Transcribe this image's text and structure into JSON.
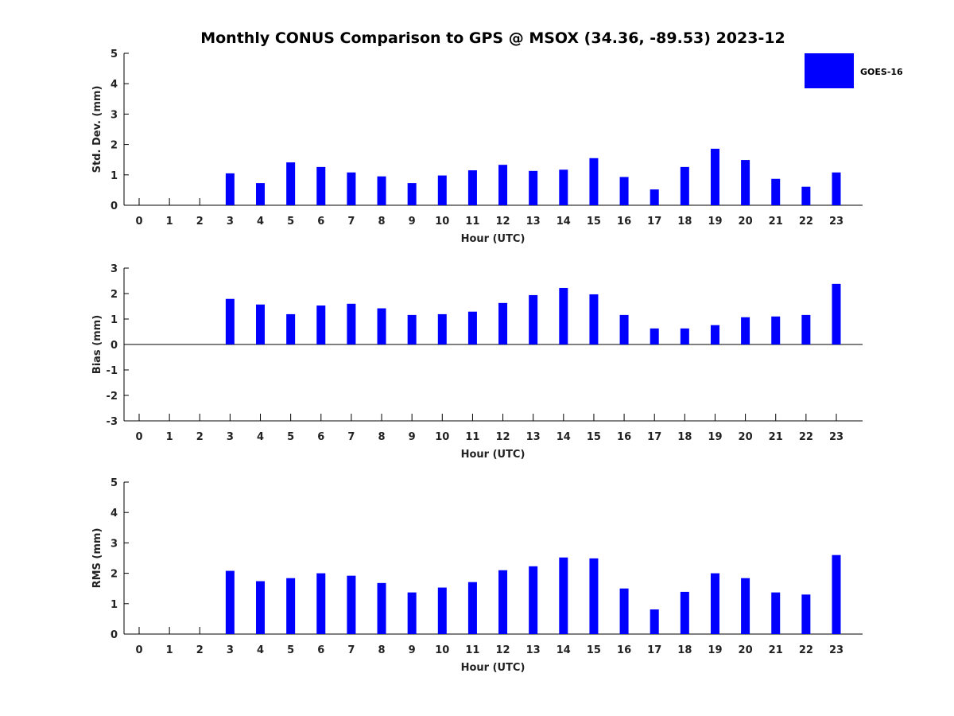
{
  "title": "Monthly CONUS Comparison to GPS @ MSOX (34.36, -89.53) 2023-12",
  "legend": {
    "label": "GOES-16",
    "color": "#0000ff"
  },
  "chart_data": [
    {
      "type": "bar",
      "xlabel": "Hour (UTC)",
      "ylabel": "Std. Dev. (mm)",
      "categories": [
        "0",
        "1",
        "2",
        "3",
        "4",
        "5",
        "6",
        "7",
        "8",
        "9",
        "10",
        "11",
        "12",
        "13",
        "14",
        "15",
        "16",
        "17",
        "18",
        "19",
        "20",
        "21",
        "22",
        "23"
      ],
      "series": [
        {
          "name": "GOES-16",
          "values": [
            null,
            null,
            null,
            1.05,
            0.73,
            1.41,
            1.26,
            1.08,
            0.95,
            0.73,
            0.98,
            1.15,
            1.33,
            1.13,
            1.17,
            1.55,
            0.93,
            0.52,
            1.26,
            1.86,
            1.49,
            0.87,
            0.61,
            1.08
          ]
        }
      ],
      "ylim": [
        0,
        5
      ],
      "yticks": [
        0,
        1,
        2,
        3,
        4,
        5
      ],
      "legend_position": "top-right",
      "grid": false
    },
    {
      "type": "bar",
      "xlabel": "Hour (UTC)",
      "ylabel": "Bias (mm)",
      "categories": [
        "0",
        "1",
        "2",
        "3",
        "4",
        "5",
        "6",
        "7",
        "8",
        "9",
        "10",
        "11",
        "12",
        "13",
        "14",
        "15",
        "16",
        "17",
        "18",
        "19",
        "20",
        "21",
        "22",
        "23"
      ],
      "series": [
        {
          "name": "GOES-16",
          "values": [
            null,
            null,
            null,
            1.79,
            1.57,
            1.19,
            1.53,
            1.6,
            1.42,
            1.16,
            1.19,
            1.29,
            1.63,
            1.94,
            2.22,
            1.97,
            1.16,
            0.63,
            0.63,
            0.76,
            1.07,
            1.1,
            1.16,
            2.38
          ]
        }
      ],
      "ylim": [
        -3,
        3
      ],
      "yticks": [
        -3,
        -2,
        -1,
        0,
        1,
        2,
        3
      ],
      "grid": false
    },
    {
      "type": "bar",
      "xlabel": "Hour (UTC)",
      "ylabel": "RMS (mm)",
      "categories": [
        "0",
        "1",
        "2",
        "3",
        "4",
        "5",
        "6",
        "7",
        "8",
        "9",
        "10",
        "11",
        "12",
        "13",
        "14",
        "15",
        "16",
        "17",
        "18",
        "19",
        "20",
        "21",
        "22",
        "23"
      ],
      "series": [
        {
          "name": "GOES-16",
          "values": [
            null,
            null,
            null,
            2.08,
            1.74,
            1.84,
            2.0,
            1.92,
            1.68,
            1.37,
            1.53,
            1.71,
            2.1,
            2.23,
            2.52,
            2.49,
            1.5,
            0.81,
            1.39,
            2.0,
            1.84,
            1.37,
            1.3,
            2.6
          ]
        }
      ],
      "ylim": [
        0,
        5
      ],
      "yticks": [
        0,
        1,
        2,
        3,
        4,
        5
      ],
      "grid": false
    }
  ]
}
